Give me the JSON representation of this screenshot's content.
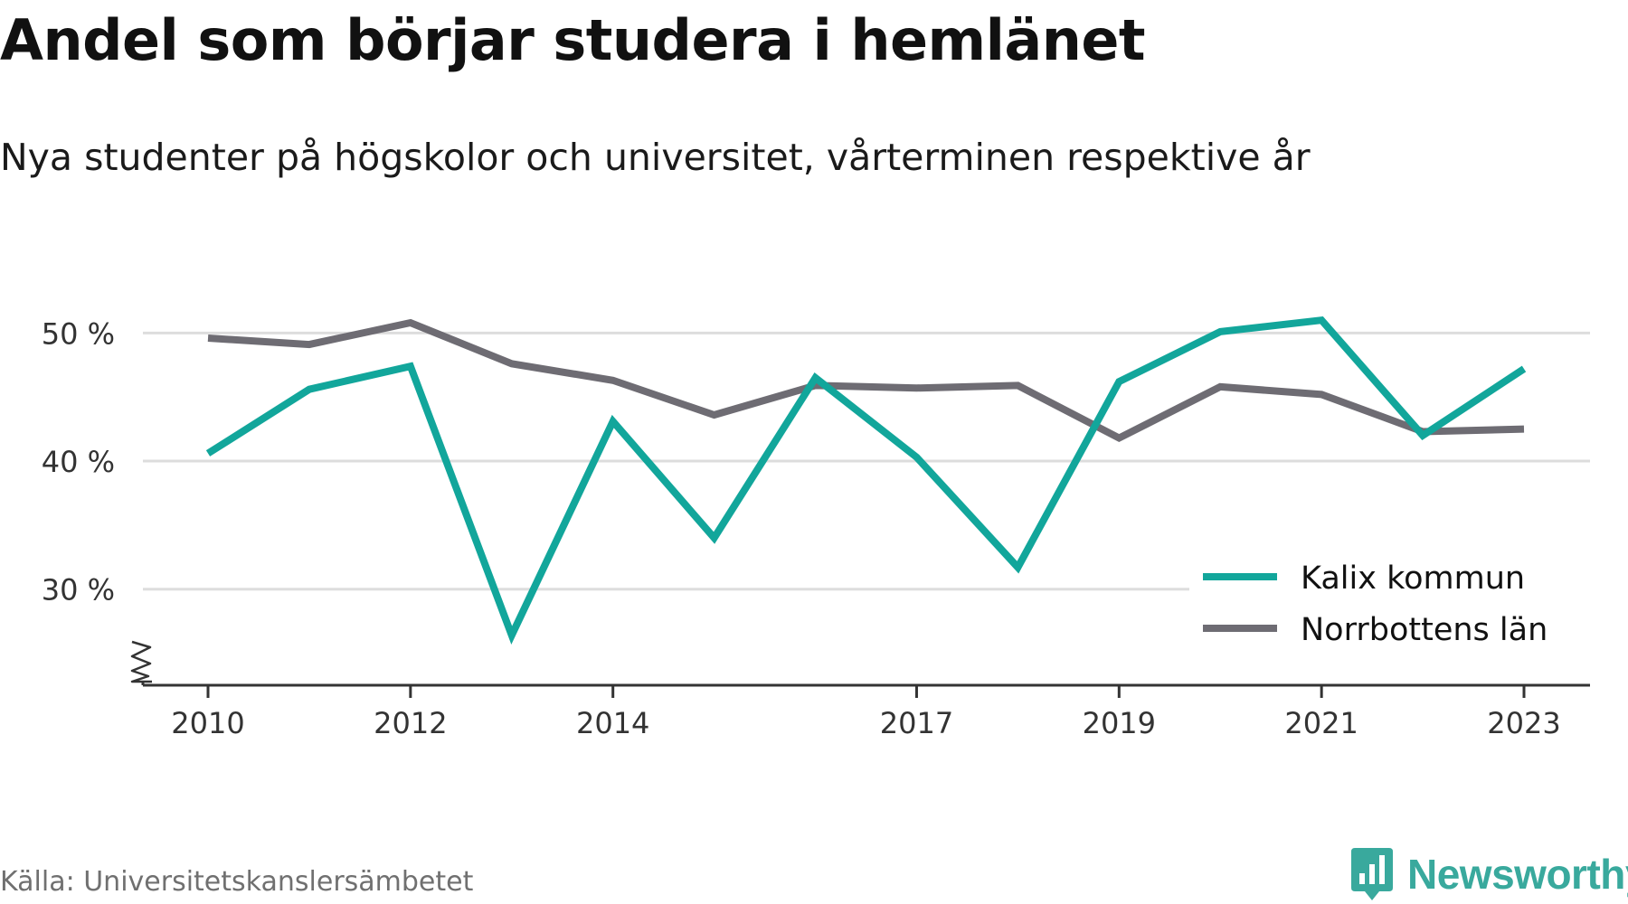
{
  "header": {
    "title": "Andel som börjar studera i hemlänet",
    "subtitle": "Nya studenter på högskolor och universitet, vårterminen respektive år"
  },
  "footer": {
    "source": "Källa: Universitetskanslersämbetet",
    "brand": "Newsworthy"
  },
  "colors": {
    "kalix": "#12a69b",
    "norrbotten": "#6e6c73",
    "grid": "#dddddd",
    "axis": "#333333",
    "brand": "#39a99d"
  },
  "chart_data": {
    "type": "line",
    "x": [
      2010,
      2011,
      2012,
      2013,
      2014,
      2015,
      2016,
      2017,
      2018,
      2019,
      2020,
      2021,
      2022,
      2023
    ],
    "x_tick_labels": [
      "2010",
      "2012",
      "2014",
      "2017",
      "2019",
      "2021",
      "2023"
    ],
    "y_ticks": [
      30,
      40,
      50
    ],
    "y_tick_labels": [
      "30 %",
      "40 %",
      "50 %"
    ],
    "ylim": [
      22.5,
      52
    ],
    "y_axis_break": true,
    "grid": true,
    "legend_position": "bottom-right",
    "series": [
      {
        "name": "Kalix kommun",
        "color": "#12a69b",
        "values": [
          40.6,
          45.6,
          47.4,
          26.4,
          43.1,
          34.0,
          46.5,
          40.3,
          31.7,
          46.2,
          50.1,
          51.0,
          42.0,
          47.2
        ]
      },
      {
        "name": "Norrbottens län",
        "color": "#6e6c73",
        "values": [
          49.6,
          49.1,
          50.8,
          47.6,
          46.3,
          43.6,
          45.9,
          45.7,
          45.9,
          41.8,
          45.8,
          45.2,
          42.3,
          42.5
        ]
      }
    ]
  }
}
